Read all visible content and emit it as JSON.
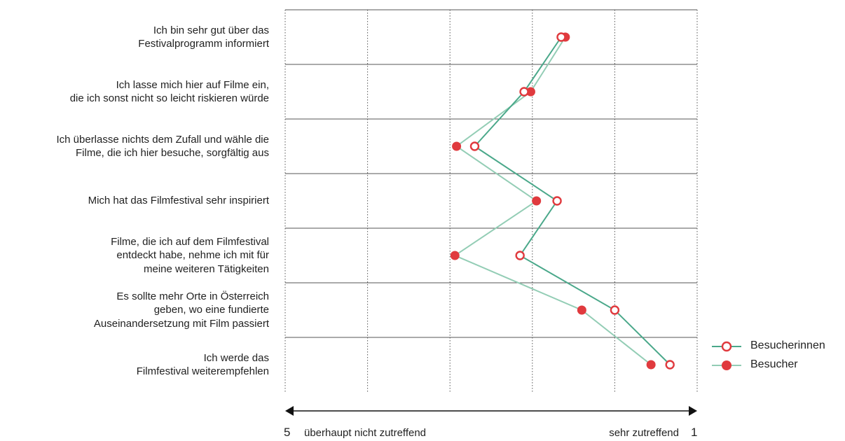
{
  "chart_data": {
    "type": "line",
    "orientation": "horizontal",
    "categories": [
      "Ich bin sehr gut über das\nFestivalprogramm informiert",
      "Ich lasse mich hier auf Filme ein,\ndie ich sonst nicht so leicht riskieren würde",
      "Ich überlasse nichts dem Zufall und wähle die\nFilme, die ich hier besuche, sorgfältig aus",
      "Mich hat das Filmfestival sehr inspiriert",
      "Filme, die ich auf dem Filmfestival\nentdeckt habe, nehme ich mit für\nmeine weiteren Tätigkeiten",
      "Es sollte mehr Orte in Österreich\ngeben, wo eine fundierte\nAuseinandersetzung mit Film passiert",
      "Ich werde das\nFilmfestival weiterempfehlen"
    ],
    "series": [
      {
        "name": "Besucherinnen",
        "marker": "hollow-circle",
        "line_color": "#4aa88a",
        "marker_color": "#e03a3e",
        "values": [
          1.65,
          2.1,
          2.7,
          1.7,
          2.15,
          1.0,
          0.33
        ]
      },
      {
        "name": "Besucher",
        "marker": "filled-circle",
        "line_color": "#93cdb5",
        "marker_color": "#e03a3e",
        "values": [
          1.6,
          2.02,
          2.92,
          1.95,
          2.94,
          1.4,
          0.56
        ]
      }
    ],
    "x_scale": {
      "left_label": "5",
      "left_text": "überhaupt nicht zutreffend",
      "right_text": "sehr zutreffend",
      "right_label": "1"
    },
    "xlim": [
      5,
      0
    ],
    "grid": true,
    "legend_position": "right-bottom"
  }
}
